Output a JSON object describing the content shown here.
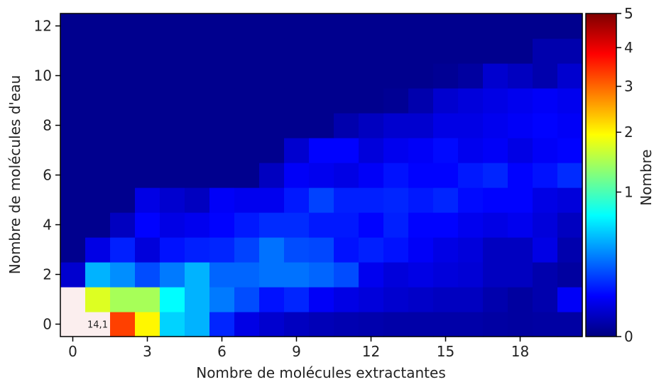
{
  "chart_data": {
    "type": "heatmap",
    "xlabel": "Nombre de molécules extractantes",
    "ylabel": "Nombre de molécules d'eau",
    "x_ticks": [
      0,
      3,
      6,
      9,
      12,
      15,
      18
    ],
    "y_ticks": [
      0,
      2,
      4,
      6,
      8,
      10,
      12
    ],
    "xlim": [
      -0.5,
      20.5
    ],
    "ylim": [
      -0.5,
      12.5
    ],
    "colorbar": {
      "label": "Nombre",
      "colormap": "jet",
      "scale": "sqrt",
      "ticks": [
        0,
        1,
        2,
        3,
        4,
        5
      ],
      "range": [
        0,
        5
      ]
    },
    "saturated_color": "#fbeeee",
    "annotation": "14,1",
    "grid_note": "rows indexed by water molecules (0..12), columns by extractant molecules (0..20); null = above colour-bar maximum",
    "values": [
      [
        null,
        14.1,
        3.3,
        2.0,
        0.55,
        0.45,
        0.13,
        0.05,
        0.03,
        0.02,
        0.015,
        0.012,
        0.01,
        0.008,
        0.008,
        0.008,
        0.008,
        0.006,
        0.005,
        0.006,
        0.006
      ],
      [
        null,
        1.75,
        1.45,
        1.45,
        0.7,
        0.45,
        0.3,
        0.2,
        0.1,
        0.13,
        0.07,
        0.05,
        0.04,
        0.03,
        0.025,
        0.02,
        0.02,
        0.01,
        0.005,
        0.01,
        0.07
      ],
      [
        0.03,
        0.45,
        0.35,
        0.2,
        0.3,
        0.45,
        0.25,
        0.25,
        0.28,
        0.28,
        0.25,
        0.2,
        0.06,
        0.04,
        0.05,
        0.04,
        0.035,
        0.02,
        0.02,
        0.01,
        0.005
      ],
      [
        0.001,
        0.05,
        0.12,
        0.04,
        0.1,
        0.12,
        0.13,
        0.18,
        0.28,
        0.2,
        0.19,
        0.1,
        0.12,
        0.1,
        0.07,
        0.05,
        0.04,
        0.02,
        0.02,
        0.05,
        0.01
      ],
      [
        0.001,
        0.001,
        0.02,
        0.08,
        0.05,
        0.06,
        0.08,
        0.11,
        0.14,
        0.14,
        0.11,
        0.11,
        0.08,
        0.12,
        0.08,
        0.08,
        0.06,
        0.05,
        0.06,
        0.04,
        0.02
      ],
      [
        0.001,
        0.001,
        0.001,
        0.05,
        0.03,
        0.02,
        0.07,
        0.06,
        0.06,
        0.11,
        0.18,
        0.12,
        0.12,
        0.13,
        0.11,
        0.13,
        0.09,
        0.08,
        0.08,
        0.05,
        0.04
      ],
      [
        0.001,
        0.001,
        0.001,
        0.001,
        0.001,
        0.001,
        0.001,
        0.001,
        0.02,
        0.07,
        0.06,
        0.05,
        0.07,
        0.1,
        0.08,
        0.08,
        0.11,
        0.13,
        0.08,
        0.1,
        0.14
      ],
      [
        0.001,
        0.001,
        0.001,
        0.001,
        0.001,
        0.001,
        0.001,
        0.001,
        0.001,
        0.03,
        0.08,
        0.08,
        0.04,
        0.06,
        0.07,
        0.09,
        0.06,
        0.07,
        0.05,
        0.07,
        0.08
      ],
      [
        0.001,
        0.001,
        0.001,
        0.001,
        0.001,
        0.001,
        0.001,
        0.001,
        0.001,
        0.001,
        0.001,
        0.01,
        0.02,
        0.03,
        0.03,
        0.05,
        0.05,
        0.06,
        0.07,
        0.08,
        0.07
      ],
      [
        0.001,
        0.001,
        0.001,
        0.001,
        0.001,
        0.001,
        0.001,
        0.001,
        0.001,
        0.001,
        0.001,
        0.001,
        0.001,
        0.002,
        0.01,
        0.03,
        0.04,
        0.05,
        0.06,
        0.07,
        0.06
      ],
      [
        0.001,
        0.001,
        0.001,
        0.001,
        0.001,
        0.001,
        0.001,
        0.001,
        0.001,
        0.001,
        0.001,
        0.001,
        0.001,
        0.001,
        0.001,
        0.002,
        0.005,
        0.03,
        0.02,
        0.01,
        0.03
      ],
      [
        0.001,
        0.001,
        0.001,
        0.001,
        0.001,
        0.001,
        0.001,
        0.001,
        0.001,
        0.001,
        0.001,
        0.001,
        0.001,
        0.001,
        0.001,
        0.001,
        0.001,
        0.001,
        0.001,
        0.01,
        0.01
      ],
      [
        0.001,
        0.001,
        0.001,
        0.001,
        0.001,
        0.001,
        0.001,
        0.001,
        0.001,
        0.001,
        0.001,
        0.001,
        0.001,
        0.001,
        0.001,
        0.001,
        0.001,
        0.001,
        0.001,
        0.001,
        0.001
      ]
    ]
  }
}
